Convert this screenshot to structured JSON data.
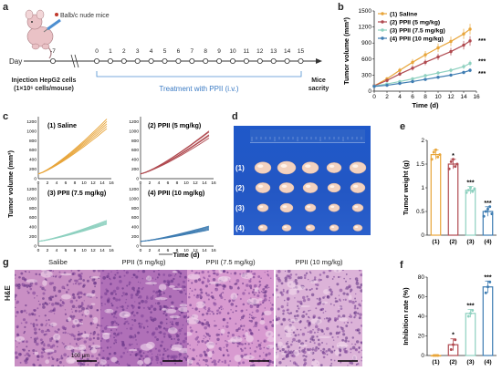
{
  "panel_labels": {
    "a": "a",
    "b": "b",
    "c": "c",
    "d": "d",
    "e": "e",
    "f": "f",
    "g": "g"
  },
  "schematic": {
    "mice_label": "Balb/c nude mice",
    "day_label": "Day",
    "days": [
      "-7",
      "0",
      "1",
      "2",
      "3",
      "4",
      "5",
      "6",
      "7",
      "8",
      "9",
      "10",
      "11",
      "12",
      "13",
      "14",
      "15"
    ],
    "injection_line1": "Injection HepG2 cells",
    "injection_line2": "(1×10⁶ cells/mouse)",
    "treatment": "Treatment  with PPII (i.v.)",
    "sacrifice_line1": "Mice",
    "sacrifice_line2": "sacrity"
  },
  "photo": {
    "rows": [
      "(1)",
      "(2)",
      "(3)",
      "(4)"
    ],
    "counts": [
      5,
      5,
      5,
      5
    ]
  },
  "histology": {
    "row_label": "H&E",
    "scale_label": "100 μm",
    "titles": [
      "Salibe",
      "PPII (5 mg/kg)",
      "PPII (7.5 mg/kg)",
      "PPII (10 mg/kg)"
    ]
  },
  "colors": {
    "saline": "#e8a53a",
    "ppii5": "#b04a50",
    "ppii75": "#8fd1c0",
    "ppii10": "#3f7db2"
  },
  "chart_data": [
    {
      "id": "b",
      "type": "line",
      "xlabel": "Time (d)",
      "ylabel": "Tumor volume (mm³)",
      "xlim": [
        0,
        16
      ],
      "ylim": [
        0,
        1500
      ],
      "xticks": [
        0,
        2,
        4,
        6,
        8,
        10,
        12,
        14,
        16
      ],
      "yticks": [
        0,
        300,
        600,
        900,
        1200,
        1500
      ],
      "x": [
        0,
        2,
        4,
        6,
        8,
        10,
        12,
        14,
        15
      ],
      "series": [
        {
          "name": "(1) Saline",
          "color": "#e8a53a",
          "values": [
            100,
            230,
            390,
            540,
            680,
            810,
            930,
            1070,
            1160
          ],
          "errors": [
            15,
            30,
            45,
            60,
            70,
            80,
            90,
            95,
            100
          ]
        },
        {
          "name": "(2) PPII (5 mg/kg)",
          "color": "#b04a50",
          "values": [
            100,
            200,
            320,
            430,
            540,
            640,
            740,
            860,
            940
          ],
          "errors": [
            15,
            25,
            35,
            45,
            55,
            60,
            70,
            80,
            90
          ]
        },
        {
          "name": "(3) PPII (7.5 mg/kg)",
          "color": "#8fd1c0",
          "values": [
            95,
            135,
            180,
            230,
            290,
            340,
            390,
            460,
            520
          ],
          "errors": [
            10,
            15,
            20,
            25,
            30,
            35,
            40,
            45,
            50
          ]
        },
        {
          "name": "(4) PPII (10 mg/kg)",
          "color": "#3f7db2",
          "values": [
            90,
            110,
            145,
            180,
            220,
            260,
            300,
            350,
            390
          ],
          "errors": [
            8,
            12,
            15,
            18,
            22,
            25,
            28,
            30,
            35
          ]
        }
      ],
      "annotations": [
        "***",
        "***",
        "***"
      ]
    },
    {
      "id": "c",
      "type": "line",
      "xlabel": "Time (d)",
      "ylabel": "Tumor volume (mm³)",
      "xticks": [
        0,
        2,
        4,
        6,
        8,
        10,
        12,
        14,
        16
      ],
      "yticks": [
        0,
        200,
        400,
        600,
        800,
        1000,
        1200
      ],
      "xlim": [
        0,
        16
      ],
      "ylim": [
        0,
        1300
      ],
      "panels": [
        {
          "title": "(1) Saline",
          "color": "#e8a53a",
          "final": [
            1050,
            1150,
            1200,
            1100,
            1250
          ]
        },
        {
          "title": "(2) PPII (5 mg/kg)",
          "color": "#b04a50",
          "final": [
            850,
            900,
            980,
            1000,
            920
          ]
        },
        {
          "title": "(3) PPII (7.5 mg/kg)",
          "color": "#8fd1c0",
          "final": [
            460,
            500,
            540,
            520,
            480
          ]
        },
        {
          "title": "(4) PPII (10 mg/kg)",
          "color": "#3f7db2",
          "final": [
            340,
            380,
            400,
            360,
            420
          ]
        }
      ]
    },
    {
      "id": "e",
      "type": "bar",
      "ylabel": "Tumor weight (g)",
      "categories": [
        "(1)",
        "(2)",
        "(3)",
        "(4)"
      ],
      "values": [
        1.7,
        1.5,
        0.95,
        0.5
      ],
      "errors": [
        0.1,
        0.1,
        0.08,
        0.1
      ],
      "points": [
        [
          1.6,
          1.75,
          1.8,
          1.65,
          1.7
        ],
        [
          1.4,
          1.55,
          1.6,
          1.45,
          1.5
        ],
        [
          0.9,
          0.95,
          1.0,
          0.92,
          0.98
        ],
        [
          0.4,
          0.5,
          0.55,
          0.6,
          0.45
        ]
      ],
      "significance": [
        "",
        "*",
        "***",
        "***"
      ],
      "ylim": [
        0,
        2.0
      ],
      "yticks": [
        0,
        0.5,
        1.0,
        1.5,
        2.0
      ]
    },
    {
      "id": "f",
      "type": "bar",
      "ylabel": "Inhibition rate (%)",
      "categories": [
        "(1)",
        "(2)",
        "(3)",
        "(4)"
      ],
      "values": [
        0,
        11,
        43,
        70
      ],
      "errors": [
        1,
        6,
        4,
        6
      ],
      "points": [
        [
          0,
          0,
          0
        ],
        [
          6,
          11,
          16
        ],
        [
          40,
          43,
          46
        ],
        [
          64,
          70,
          75
        ]
      ],
      "significance": [
        "",
        "*",
        "***",
        "***"
      ],
      "ylim": [
        0,
        80
      ],
      "yticks": [
        0,
        20,
        40,
        60,
        80
      ]
    }
  ]
}
